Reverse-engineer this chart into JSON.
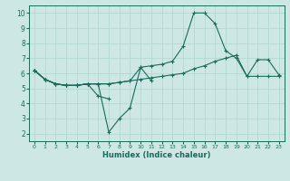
{
  "xlabel": "Humidex (Indice chaleur)",
  "ylabel": "",
  "xlim": [
    -0.5,
    23.5
  ],
  "ylim": [
    1.5,
    10.5
  ],
  "background_color": "#cde8e4",
  "grid_color": "#b0d5ce",
  "line_color": "#1a6b5a",
  "xticks": [
    0,
    1,
    2,
    3,
    4,
    5,
    6,
    7,
    8,
    9,
    10,
    11,
    12,
    13,
    14,
    15,
    16,
    17,
    18,
    19,
    20,
    21,
    22,
    23
  ],
  "yticks": [
    2,
    3,
    4,
    5,
    6,
    7,
    8,
    9,
    10
  ],
  "lines": [
    {
      "x": [
        0,
        1,
        2,
        3,
        4,
        5,
        6,
        7,
        8,
        9,
        10,
        11
      ],
      "y": [
        6.2,
        5.6,
        5.3,
        5.2,
        5.2,
        5.3,
        5.3,
        2.1,
        3.0,
        3.7,
        6.4,
        5.5
      ]
    },
    {
      "x": [
        0,
        1,
        2,
        3,
        4,
        5,
        6,
        7
      ],
      "y": [
        6.2,
        5.6,
        5.3,
        5.2,
        5.2,
        5.3,
        4.5,
        4.3
      ]
    },
    {
      "x": [
        0,
        1,
        2,
        3,
        4,
        5,
        6,
        7,
        8,
        9,
        10,
        11,
        12,
        13,
        14,
        15,
        16,
        17,
        18,
        19,
        20,
        21,
        22,
        23
      ],
      "y": [
        6.2,
        5.6,
        5.3,
        5.2,
        5.2,
        5.3,
        5.3,
        5.3,
        5.4,
        5.5,
        6.4,
        6.5,
        6.6,
        6.8,
        7.8,
        10.0,
        10.0,
        9.3,
        7.5,
        7.0,
        5.8,
        6.9,
        6.9,
        5.9
      ]
    },
    {
      "x": [
        0,
        1,
        2,
        3,
        4,
        5,
        6,
        7,
        8,
        9,
        10,
        11,
        12,
        13,
        14,
        15,
        16,
        17,
        18,
        19,
        20,
        21,
        22,
        23
      ],
      "y": [
        6.2,
        5.6,
        5.3,
        5.2,
        5.2,
        5.3,
        5.3,
        5.3,
        5.4,
        5.5,
        5.6,
        5.7,
        5.8,
        5.9,
        6.0,
        6.3,
        6.5,
        6.8,
        7.0,
        7.2,
        5.8,
        5.8,
        5.8,
        5.8
      ]
    }
  ]
}
